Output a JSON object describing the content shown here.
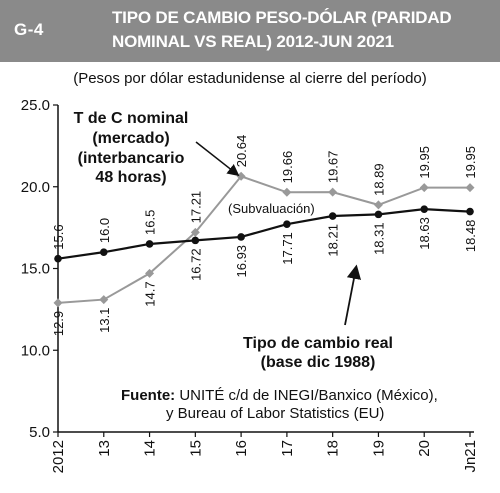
{
  "header": {
    "code": "G-4",
    "title_line1": "TIPO DE CAMBIO PESO-DÓLAR (PARIDAD",
    "title_line2": "NOMINAL VS REAL) 2012-JUN 2021"
  },
  "subtitle": "(Pesos por dólar estadunidense al cierre del período)",
  "chart_data": {
    "type": "line",
    "categories": [
      "2012",
      "13",
      "14",
      "15",
      "16",
      "17",
      "18",
      "19",
      "20",
      "Jn21"
    ],
    "ylim": [
      5.0,
      25.0
    ],
    "yticks": [
      "5.0",
      "10.0",
      "15.0",
      "20.0",
      "25.0"
    ],
    "grid": false,
    "series": [
      {
        "name_lines": [
          "T de C nominal",
          "(mercado)",
          "(interbancario",
          "48 horas)"
        ],
        "color": "#999999",
        "values": [
          12.9,
          13.1,
          14.7,
          17.21,
          20.64,
          19.66,
          19.67,
          18.89,
          19.95,
          19.95
        ],
        "labels": [
          "12.9",
          "13.1",
          "14.7",
          "17.21",
          "20.64",
          "19.66",
          "19.67",
          "18.89",
          "19.95",
          "19.95"
        ]
      },
      {
        "name_lines": [
          "Tipo de cambio real",
          "(base dic 1988)"
        ],
        "color": "#111111",
        "values": [
          15.6,
          16.0,
          16.5,
          16.72,
          16.93,
          17.71,
          18.21,
          18.31,
          18.63,
          18.48
        ],
        "labels": [
          "15.6",
          "16.0",
          "16.5",
          "16.72",
          "16.93",
          "17.71",
          "18.21",
          "18.31",
          "18.63",
          "18.48"
        ]
      }
    ],
    "annotations": {
      "subvaluacion": "(Subvaluación)"
    },
    "source": {
      "label": "Fuente:",
      "line1": "UNITÉ c/d de INEGI/Banxico (México),",
      "line2": "y Bureau of Labor Statistics (EU)"
    }
  }
}
